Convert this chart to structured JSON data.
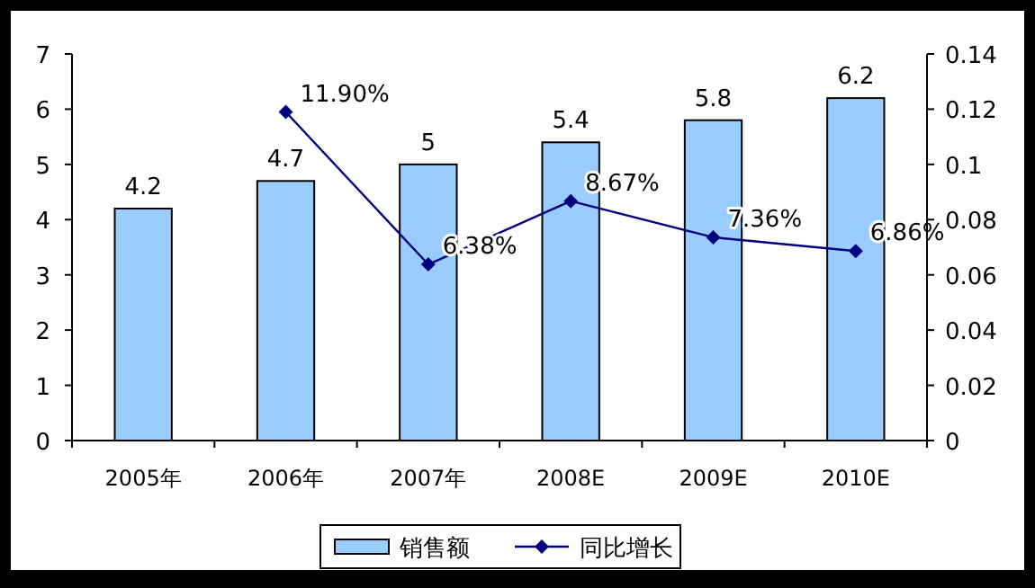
{
  "chart_data": {
    "type": "bar",
    "categories": [
      "2005年",
      "2006年",
      "2007年",
      "2008E",
      "2009E",
      "2010E"
    ],
    "series": [
      {
        "name": "销售额",
        "color": "#99ccff",
        "values": [
          4.2,
          4.7,
          5,
          5.4,
          5.8,
          6.2
        ],
        "data_labels": true
      },
      {
        "name": "同比增长",
        "type": "line",
        "axis": "y2",
        "color": "#000080",
        "marker": "diamond",
        "values": [
          null,
          0.119,
          0.0638,
          0.0867,
          0.0736,
          0.0686
        ],
        "value_labels": [
          null,
          "11.90%",
          "6.38%",
          "8.67%",
          "7.36%",
          "6.86%"
        ]
      }
    ],
    "ylim": [
      0,
      7
    ],
    "yticks": [
      0,
      1,
      2,
      3,
      4,
      5,
      6,
      7
    ],
    "y2lim": [
      0,
      0.14
    ],
    "y2ticks": [
      0,
      0.02,
      0.04,
      0.06,
      0.08,
      0.1,
      0.12,
      0.14
    ],
    "grid": false,
    "legend": "bottom"
  }
}
